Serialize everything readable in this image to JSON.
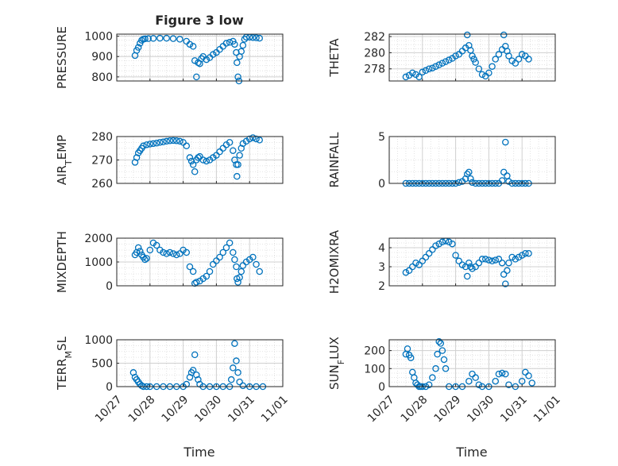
{
  "figure": {
    "title": "Figure 3 low",
    "x_label": "Time",
    "marker_color": "#0072BD",
    "x_ticks": [
      "10/27",
      "10/28",
      "10/29",
      "10/30",
      "10/31",
      "11/01"
    ]
  },
  "chart_data": [
    {
      "type": "scatter",
      "ylabel": "PRESSURE",
      "xlim": [
        0,
        5
      ],
      "ylim": [
        780,
        1010
      ],
      "yticks": [
        800,
        900,
        1000
      ],
      "yticklabels": [
        "800",
        "900",
        "1000"
      ],
      "x": [
        0.55,
        0.6,
        0.65,
        0.7,
        0.75,
        0.8,
        0.85,
        0.95,
        1.1,
        1.3,
        1.5,
        1.7,
        1.9,
        2.1,
        2.2,
        2.3,
        2.35,
        2.4,
        2.45,
        2.5,
        2.55,
        2.6,
        2.7,
        2.8,
        2.9,
        3.0,
        3.1,
        3.2,
        3.3,
        3.4,
        3.5,
        3.55,
        3.6,
        3.62,
        3.65,
        3.68,
        3.7,
        3.75,
        3.8,
        3.85,
        3.9,
        4.0,
        4.1,
        4.2,
        4.3
      ],
      "y": [
        905,
        930,
        945,
        965,
        980,
        985,
        987,
        988,
        989,
        990,
        990,
        988,
        985,
        975,
        960,
        950,
        880,
        800,
        870,
        865,
        890,
        900,
        885,
        895,
        910,
        920,
        935,
        950,
        965,
        970,
        975,
        960,
        920,
        870,
        800,
        780,
        900,
        925,
        955,
        985,
        995,
        995,
        993,
        992,
        990
      ],
      "grid": true,
      "legend": "none"
    },
    {
      "type": "scatter",
      "ylabel": "THETA",
      "xlim": [
        0,
        5
      ],
      "ylim": [
        276.5,
        282.3
      ],
      "yticks": [
        278,
        280,
        282
      ],
      "yticklabels": [
        "278",
        "280",
        "282"
      ],
      "x": [
        0.5,
        0.6,
        0.7,
        0.8,
        0.9,
        1.0,
        1.1,
        1.2,
        1.3,
        1.4,
        1.5,
        1.6,
        1.7,
        1.8,
        1.9,
        2.0,
        2.1,
        2.2,
        2.3,
        2.35,
        2.4,
        2.45,
        2.5,
        2.55,
        2.6,
        2.7,
        2.8,
        2.9,
        3.0,
        3.1,
        3.2,
        3.3,
        3.4,
        3.45,
        3.5,
        3.55,
        3.6,
        3.7,
        3.8,
        3.9,
        4.0,
        4.1,
        4.2
      ],
      "y": [
        277.0,
        277.2,
        277.5,
        277.3,
        277.0,
        277.6,
        277.8,
        278.0,
        278.1,
        278.3,
        278.5,
        278.7,
        278.9,
        279.1,
        279.3,
        279.6,
        279.8,
        280.2,
        280.6,
        282.2,
        280.9,
        280.3,
        279.6,
        279.2,
        278.8,
        278.0,
        277.3,
        277.1,
        277.5,
        278.3,
        279.2,
        279.8,
        280.4,
        282.2,
        280.8,
        280.2,
        279.6,
        279.0,
        278.7,
        279.2,
        279.8,
        279.6,
        279.2
      ],
      "grid": true,
      "legend": "none"
    },
    {
      "type": "scatter",
      "ylabel": "AIR_TEMP",
      "xlim": [
        0,
        5
      ],
      "ylim": [
        260,
        280
      ],
      "yticks": [
        260,
        270,
        280
      ],
      "yticklabels": [
        "260",
        "270",
        "280"
      ],
      "x": [
        0.55,
        0.6,
        0.65,
        0.7,
        0.75,
        0.8,
        0.9,
        1.0,
        1.1,
        1.2,
        1.3,
        1.4,
        1.5,
        1.6,
        1.7,
        1.8,
        1.9,
        2.0,
        2.1,
        2.2,
        2.25,
        2.3,
        2.35,
        2.4,
        2.45,
        2.5,
        2.6,
        2.7,
        2.8,
        2.9,
        3.0,
        3.1,
        3.2,
        3.3,
        3.4,
        3.5,
        3.55,
        3.6,
        3.62,
        3.65,
        3.7,
        3.75,
        3.8,
        3.9,
        4.0,
        4.1,
        4.2,
        4.3
      ],
      "y": [
        269,
        271,
        273,
        274,
        275,
        276,
        276.5,
        276.8,
        277,
        277.2,
        277.5,
        277.7,
        278,
        278.2,
        278.3,
        278.2,
        278,
        277.5,
        276,
        271,
        269.5,
        268,
        265,
        270,
        271,
        271.5,
        270,
        269.5,
        270,
        271,
        272,
        273.5,
        275,
        276.5,
        277.5,
        274,
        270,
        268,
        263,
        268,
        272,
        275,
        277,
        278,
        279,
        279.5,
        279,
        278.5
      ],
      "grid": true,
      "legend": "none"
    },
    {
      "type": "scatter",
      "ylabel": "RAINFALL",
      "xlim": [
        0,
        5
      ],
      "ylim": [
        0,
        5
      ],
      "yticks": [
        0,
        5
      ],
      "yticklabels": [
        "0",
        "5"
      ],
      "x": [
        0.5,
        0.6,
        0.7,
        0.8,
        0.9,
        1.0,
        1.1,
        1.2,
        1.3,
        1.4,
        1.5,
        1.6,
        1.7,
        1.8,
        1.9,
        2.0,
        2.1,
        2.2,
        2.3,
        2.35,
        2.4,
        2.45,
        2.5,
        2.6,
        2.7,
        2.8,
        2.9,
        3.0,
        3.1,
        3.2,
        3.3,
        3.4,
        3.45,
        3.5,
        3.55,
        3.6,
        3.7,
        3.8,
        3.9,
        4.0,
        4.1,
        4.2
      ],
      "y": [
        0,
        0,
        0,
        0,
        0,
        0,
        0,
        0,
        0,
        0,
        0,
        0,
        0,
        0,
        0,
        0,
        0.1,
        0.2,
        0.5,
        1.0,
        1.2,
        0.5,
        0.1,
        0,
        0,
        0,
        0,
        0,
        0,
        0,
        0,
        0.3,
        1.2,
        4.4,
        0.8,
        0.2,
        0,
        0,
        0,
        0,
        0,
        0
      ],
      "grid": true,
      "legend": "none"
    },
    {
      "type": "scatter",
      "ylabel": "MIXDEPTH",
      "xlim": [
        0,
        5
      ],
      "ylim": [
        0,
        2000
      ],
      "yticks": [
        0,
        1000,
        2000
      ],
      "yticklabels": [
        "0",
        "1000",
        "2000"
      ],
      "x": [
        0.55,
        0.6,
        0.65,
        0.7,
        0.75,
        0.8,
        0.85,
        0.9,
        1.0,
        1.1,
        1.2,
        1.3,
        1.4,
        1.5,
        1.6,
        1.7,
        1.8,
        1.9,
        2.0,
        2.1,
        2.2,
        2.3,
        2.35,
        2.4,
        2.5,
        2.6,
        2.7,
        2.8,
        2.9,
        3.0,
        3.1,
        3.2,
        3.3,
        3.4,
        3.5,
        3.55,
        3.6,
        3.62,
        3.65,
        3.7,
        3.75,
        3.8,
        3.9,
        4.0,
        4.1,
        4.2,
        4.3
      ],
      "y": [
        1300,
        1400,
        1600,
        1450,
        1300,
        1200,
        1100,
        1150,
        1500,
        1800,
        1700,
        1500,
        1400,
        1350,
        1400,
        1350,
        1300,
        1350,
        1500,
        1400,
        800,
        600,
        100,
        150,
        200,
        300,
        400,
        600,
        900,
        1050,
        1200,
        1400,
        1600,
        1800,
        1400,
        1100,
        800,
        300,
        150,
        350,
        600,
        850,
        1000,
        1100,
        1200,
        900,
        600
      ],
      "grid": true,
      "legend": "none"
    },
    {
      "type": "scatter",
      "ylabel": "H2OMIXRA",
      "xlim": [
        0,
        5
      ],
      "ylim": [
        2,
        4.5
      ],
      "yticks": [
        2,
        3,
        4
      ],
      "yticklabels": [
        "2",
        "3",
        "4"
      ],
      "x": [
        0.5,
        0.6,
        0.7,
        0.8,
        0.9,
        1.0,
        1.1,
        1.2,
        1.3,
        1.4,
        1.5,
        1.6,
        1.7,
        1.8,
        1.9,
        2.0,
        2.1,
        2.2,
        2.3,
        2.35,
        2.4,
        2.45,
        2.5,
        2.6,
        2.7,
        2.8,
        2.9,
        3.0,
        3.1,
        3.2,
        3.3,
        3.4,
        3.45,
        3.5,
        3.55,
        3.6,
        3.7,
        3.8,
        3.9,
        4.0,
        4.1,
        4.2
      ],
      "y": [
        2.7,
        2.8,
        3.0,
        3.2,
        3.1,
        3.3,
        3.5,
        3.7,
        3.9,
        4.1,
        4.2,
        4.3,
        4.35,
        4.3,
        4.2,
        3.6,
        3.3,
        3.1,
        3.0,
        2.5,
        3.2,
        3.0,
        2.9,
        3.0,
        3.2,
        3.4,
        3.4,
        3.35,
        3.3,
        3.35,
        3.4,
        3.2,
        2.6,
        2.1,
        2.8,
        3.2,
        3.5,
        3.4,
        3.5,
        3.6,
        3.7,
        3.7
      ],
      "grid": true,
      "legend": "none"
    },
    {
      "type": "scatter",
      "ylabel": "TERR_MSL",
      "xlim": [
        0,
        5
      ],
      "ylim": [
        0,
        1000
      ],
      "yticks": [
        0,
        500,
        1000
      ],
      "yticklabels": [
        "0",
        "500",
        "1000"
      ],
      "x": [
        0.5,
        0.55,
        0.6,
        0.65,
        0.7,
        0.75,
        0.8,
        0.9,
        1.0,
        1.2,
        1.4,
        1.6,
        1.8,
        2.0,
        2.1,
        2.2,
        2.25,
        2.3,
        2.35,
        2.4,
        2.45,
        2.5,
        2.6,
        2.8,
        3.0,
        3.2,
        3.4,
        3.45,
        3.5,
        3.55,
        3.6,
        3.65,
        3.7,
        3.8,
        4.0,
        4.2,
        4.4
      ],
      "y": [
        300,
        200,
        150,
        100,
        50,
        20,
        0,
        0,
        0,
        0,
        0,
        0,
        0,
        0,
        50,
        200,
        300,
        350,
        680,
        250,
        150,
        50,
        0,
        0,
        0,
        0,
        0,
        150,
        400,
        920,
        550,
        300,
        100,
        20,
        0,
        0,
        0
      ],
      "grid": true,
      "legend": "none"
    },
    {
      "type": "scatter",
      "ylabel": "SUN_FLUX",
      "xlim": [
        0,
        5
      ],
      "ylim": [
        0,
        260
      ],
      "yticks": [
        0,
        100,
        200
      ],
      "yticklabels": [
        "0",
        "100",
        "200"
      ],
      "x": [
        0.5,
        0.55,
        0.6,
        0.65,
        0.7,
        0.75,
        0.8,
        0.85,
        0.9,
        0.95,
        1.0,
        1.1,
        1.2,
        1.3,
        1.4,
        1.45,
        1.5,
        1.55,
        1.6,
        1.65,
        1.7,
        1.8,
        2.0,
        2.2,
        2.4,
        2.5,
        2.6,
        2.7,
        2.8,
        3.0,
        3.2,
        3.3,
        3.4,
        3.5,
        3.6,
        3.8,
        4.0,
        4.1,
        4.2,
        4.3
      ],
      "y": [
        180,
        210,
        175,
        160,
        80,
        50,
        20,
        10,
        0,
        0,
        0,
        0,
        10,
        50,
        100,
        180,
        250,
        240,
        200,
        150,
        100,
        0,
        0,
        0,
        30,
        70,
        50,
        10,
        0,
        0,
        30,
        70,
        75,
        70,
        10,
        0,
        30,
        80,
        60,
        20
      ],
      "grid": true,
      "legend": "none"
    }
  ]
}
